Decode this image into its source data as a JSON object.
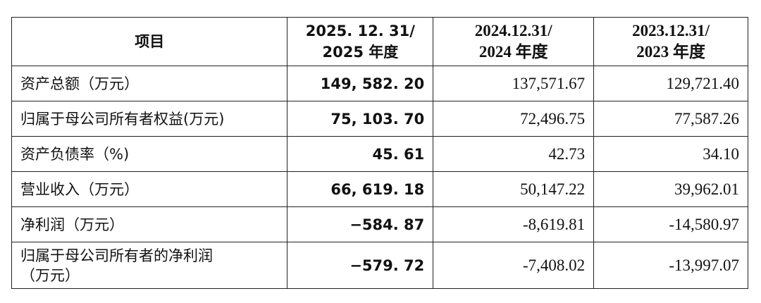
{
  "table": {
    "header": [
      [
        "项目"
      ],
      [
        "2025. 12. 31/",
        "2025 年度"
      ],
      [
        "2024.12.31/",
        "2024 年度"
      ],
      [
        "2023.12.31/",
        "2023 年度"
      ]
    ],
    "rows": [
      [
        [
          "资产总额（万元）"
        ],
        "149, 582. 20",
        "137,571.67",
        "129,721.40"
      ],
      [
        [
          "归属于母公司所有者权益(万元)"
        ],
        "75, 103. 70",
        "72,496.75",
        "77,587.26"
      ],
      [
        [
          "资产负债率（%)"
        ],
        "45. 61",
        "42.73",
        "34.10"
      ],
      [
        [
          "营业收入（万元）"
        ],
        "66, 619. 18",
        "50,147.22",
        "39,962.01"
      ],
      [
        [
          "净利润（万元）"
        ],
        "−584. 87",
        "-8,619.81",
        "-14,580.97"
      ],
      [
        [
          "归属于母公司所有者的净利润",
          "（万元）"
        ],
        "−579. 72",
        "-7,408.02",
        "-13,997.07"
      ]
    ]
  }
}
